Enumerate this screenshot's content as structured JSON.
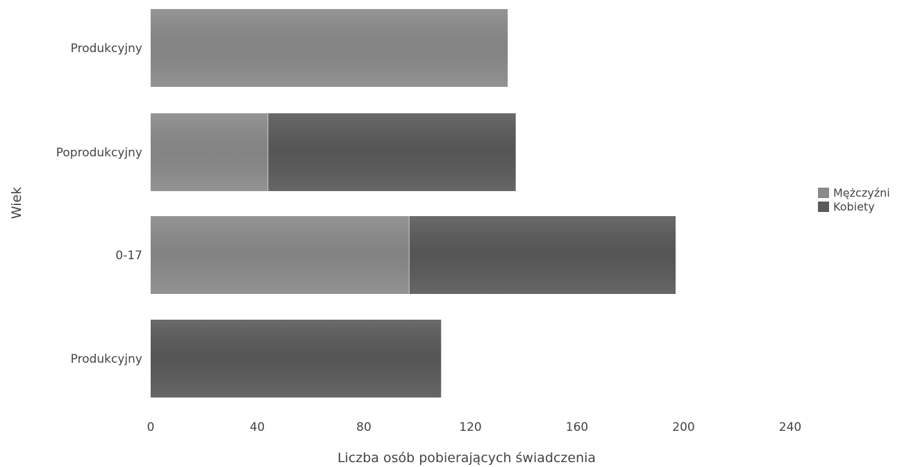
{
  "chart_data": {
    "type": "bar",
    "orientation": "horizontal",
    "stacked": true,
    "categories": [
      "Produkcyjny",
      "Poprodukcyjny",
      "0-17",
      "Produkcyjny"
    ],
    "series": [
      {
        "name": "Mężczyźni",
        "values": [
          134,
          44,
          97,
          0
        ],
        "color": "#8a8a8a"
      },
      {
        "name": "Kobiety",
        "values": [
          0,
          93,
          100,
          109
        ],
        "color": "#5a5a5a"
      }
    ],
    "xlabel": "Liczba osób pobierających świadczenia",
    "ylabel": "Wiek",
    "xlim": [
      0,
      240
    ],
    "xticks": [
      0,
      40,
      80,
      120,
      160,
      200,
      240
    ],
    "grid": false,
    "legend_position": "right"
  }
}
